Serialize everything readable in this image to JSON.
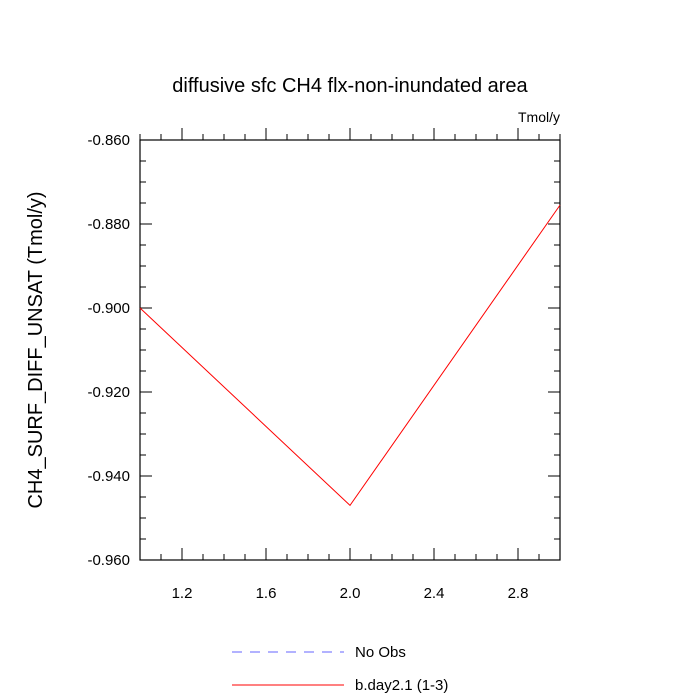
{
  "chart_data": {
    "type": "line",
    "title": "diffusive sfc CH4 flx-non-inundated area",
    "units_label": "Tmol/y",
    "ylabel": "CH4_SURF_DIFF_UNSAT  (Tmol/y)",
    "xlabel": "",
    "xlim": [
      1.0,
      3.0
    ],
    "ylim": [
      -0.96,
      -0.86
    ],
    "x_ticks": [
      1.2,
      1.6,
      2.0,
      2.4,
      2.8
    ],
    "x_tick_labels": [
      "1.2",
      "1.6",
      "2.0",
      "2.4",
      "2.8"
    ],
    "y_ticks": [
      -0.86,
      -0.88,
      -0.9,
      -0.92,
      -0.94,
      -0.96
    ],
    "y_tick_labels": [
      "-0.860",
      "-0.880",
      "-0.900",
      "-0.920",
      "-0.940",
      "-0.960"
    ],
    "grid": false,
    "legend_position": "bottom",
    "series": [
      {
        "name": "No Obs",
        "color": "#6666ff",
        "dash": "dashed",
        "x": [],
        "y": []
      },
      {
        "name": "b.day2.1 (1-3)",
        "color": "#ff0000",
        "dash": "solid",
        "x": [
          1,
          2,
          3
        ],
        "y": [
          -0.9,
          -0.947,
          -0.8755
        ]
      }
    ]
  }
}
